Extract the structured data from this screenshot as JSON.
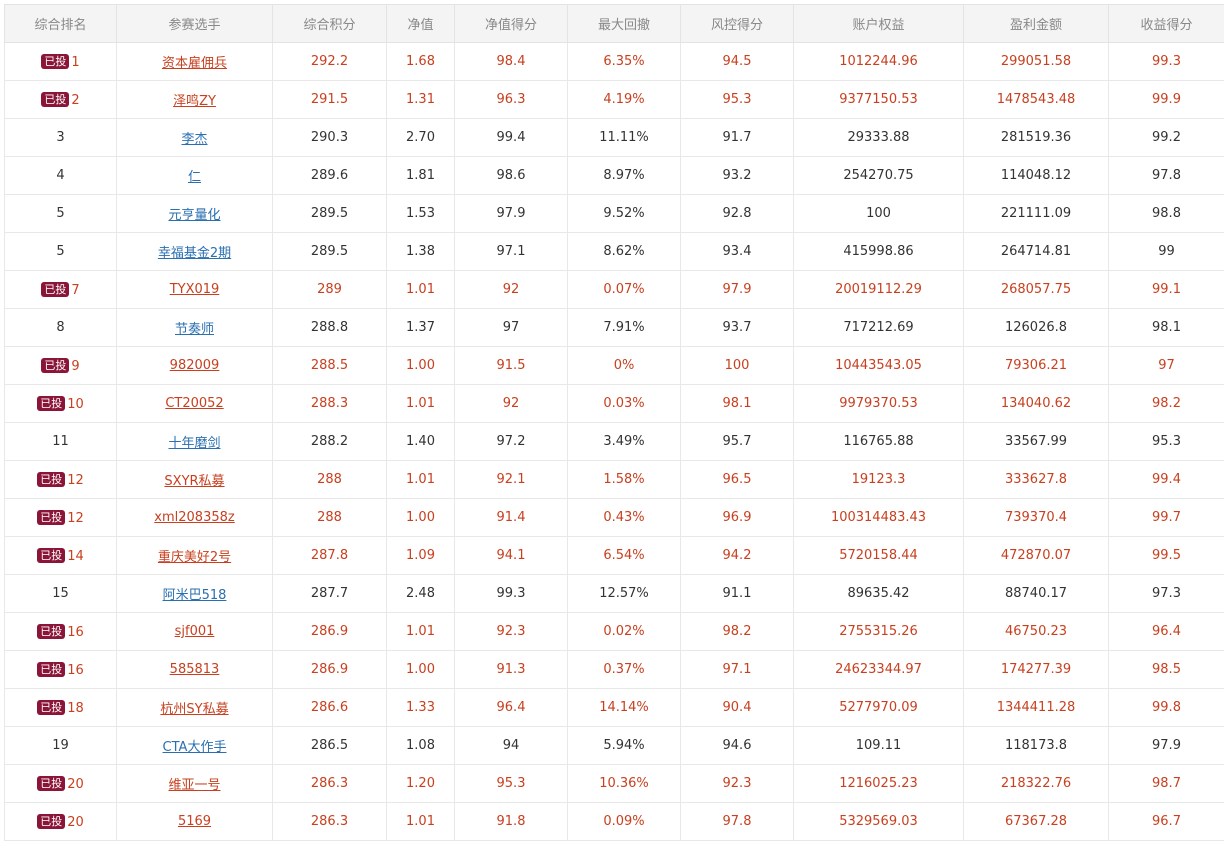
{
  "colors": {
    "invested_text": "#c8401f",
    "normal_text": "#333333",
    "link": "#2a6fb0",
    "badge_bg": "#8b1538",
    "header_bg": "#f4f4f4"
  },
  "badge_label": "已投",
  "columns": [
    "综合排名",
    "参赛选手",
    "综合积分",
    "净值",
    "净值得分",
    "最大回撤",
    "风控得分",
    "账户权益",
    "盈利金额",
    "收益得分"
  ],
  "rows": [
    {
      "rank": "1",
      "invested": true,
      "name": "资本雇佣兵",
      "score": "292.2",
      "nav": "1.68",
      "nav_score": "98.4",
      "drawdown": "6.35%",
      "risk_score": "94.5",
      "equity": "1012244.96",
      "profit": "299051.58",
      "return_score": "99.3"
    },
    {
      "rank": "2",
      "invested": true,
      "name": "泽鸣ZY",
      "score": "291.5",
      "nav": "1.31",
      "nav_score": "96.3",
      "drawdown": "4.19%",
      "risk_score": "95.3",
      "equity": "9377150.53",
      "profit": "1478543.48",
      "return_score": "99.9"
    },
    {
      "rank": "3",
      "invested": false,
      "name": "李杰",
      "score": "290.3",
      "nav": "2.70",
      "nav_score": "99.4",
      "drawdown": "11.11%",
      "risk_score": "91.7",
      "equity": "29333.88",
      "profit": "281519.36",
      "return_score": "99.2"
    },
    {
      "rank": "4",
      "invested": false,
      "name": "仁",
      "score": "289.6",
      "nav": "1.81",
      "nav_score": "98.6",
      "drawdown": "8.97%",
      "risk_score": "93.2",
      "equity": "254270.75",
      "profit": "114048.12",
      "return_score": "97.8"
    },
    {
      "rank": "5",
      "invested": false,
      "name": "元亨量化",
      "score": "289.5",
      "nav": "1.53",
      "nav_score": "97.9",
      "drawdown": "9.52%",
      "risk_score": "92.8",
      "equity": "100",
      "profit": "221111.09",
      "return_score": "98.8"
    },
    {
      "rank": "5",
      "invested": false,
      "name": "幸福基金2期",
      "score": "289.5",
      "nav": "1.38",
      "nav_score": "97.1",
      "drawdown": "8.62%",
      "risk_score": "93.4",
      "equity": "415998.86",
      "profit": "264714.81",
      "return_score": "99"
    },
    {
      "rank": "7",
      "invested": true,
      "name": "TYX019",
      "score": "289",
      "nav": "1.01",
      "nav_score": "92",
      "drawdown": "0.07%",
      "risk_score": "97.9",
      "equity": "20019112.29",
      "profit": "268057.75",
      "return_score": "99.1"
    },
    {
      "rank": "8",
      "invested": false,
      "name": "节奏师",
      "score": "288.8",
      "nav": "1.37",
      "nav_score": "97",
      "drawdown": "7.91%",
      "risk_score": "93.7",
      "equity": "717212.69",
      "profit": "126026.8",
      "return_score": "98.1"
    },
    {
      "rank": "9",
      "invested": true,
      "name": "982009",
      "score": "288.5",
      "nav": "1.00",
      "nav_score": "91.5",
      "drawdown": "0%",
      "risk_score": "100",
      "equity": "10443543.05",
      "profit": "79306.21",
      "return_score": "97"
    },
    {
      "rank": "10",
      "invested": true,
      "name": "CT20052",
      "score": "288.3",
      "nav": "1.01",
      "nav_score": "92",
      "drawdown": "0.03%",
      "risk_score": "98.1",
      "equity": "9979370.53",
      "profit": "134040.62",
      "return_score": "98.2"
    },
    {
      "rank": "11",
      "invested": false,
      "name": "十年磨剑",
      "score": "288.2",
      "nav": "1.40",
      "nav_score": "97.2",
      "drawdown": "3.49%",
      "risk_score": "95.7",
      "equity": "116765.88",
      "profit": "33567.99",
      "return_score": "95.3"
    },
    {
      "rank": "12",
      "invested": true,
      "name": "SXYR私募",
      "score": "288",
      "nav": "1.01",
      "nav_score": "92.1",
      "drawdown": "1.58%",
      "risk_score": "96.5",
      "equity": "19123.3",
      "profit": "333627.8",
      "return_score": "99.4"
    },
    {
      "rank": "12",
      "invested": true,
      "name": "xml208358z",
      "score": "288",
      "nav": "1.00",
      "nav_score": "91.4",
      "drawdown": "0.43%",
      "risk_score": "96.9",
      "equity": "100314483.43",
      "profit": "739370.4",
      "return_score": "99.7"
    },
    {
      "rank": "14",
      "invested": true,
      "name": "重庆美好2号",
      "score": "287.8",
      "nav": "1.09",
      "nav_score": "94.1",
      "drawdown": "6.54%",
      "risk_score": "94.2",
      "equity": "5720158.44",
      "profit": "472870.07",
      "return_score": "99.5"
    },
    {
      "rank": "15",
      "invested": false,
      "name": "阿米巴518",
      "score": "287.7",
      "nav": "2.48",
      "nav_score": "99.3",
      "drawdown": "12.57%",
      "risk_score": "91.1",
      "equity": "89635.42",
      "profit": "88740.17",
      "return_score": "97.3"
    },
    {
      "rank": "16",
      "invested": true,
      "name": "sjf001",
      "score": "286.9",
      "nav": "1.01",
      "nav_score": "92.3",
      "drawdown": "0.02%",
      "risk_score": "98.2",
      "equity": "2755315.26",
      "profit": "46750.23",
      "return_score": "96.4"
    },
    {
      "rank": "16",
      "invested": true,
      "name": "585813",
      "score": "286.9",
      "nav": "1.00",
      "nav_score": "91.3",
      "drawdown": "0.37%",
      "risk_score": "97.1",
      "equity": "24623344.97",
      "profit": "174277.39",
      "return_score": "98.5"
    },
    {
      "rank": "18",
      "invested": true,
      "name": "杭州SY私募",
      "score": "286.6",
      "nav": "1.33",
      "nav_score": "96.4",
      "drawdown": "14.14%",
      "risk_score": "90.4",
      "equity": "5277970.09",
      "profit": "1344411.28",
      "return_score": "99.8"
    },
    {
      "rank": "19",
      "invested": false,
      "name": "CTA大作手",
      "score": "286.5",
      "nav": "1.08",
      "nav_score": "94",
      "drawdown": "5.94%",
      "risk_score": "94.6",
      "equity": "109.11",
      "profit": "118173.8",
      "return_score": "97.9"
    },
    {
      "rank": "20",
      "invested": true,
      "name": "维亚一号",
      "score": "286.3",
      "nav": "1.20",
      "nav_score": "95.3",
      "drawdown": "10.36%",
      "risk_score": "92.3",
      "equity": "1216025.23",
      "profit": "218322.76",
      "return_score": "98.7"
    },
    {
      "rank": "20",
      "invested": true,
      "name": "5169",
      "score": "286.3",
      "nav": "1.01",
      "nav_score": "91.8",
      "drawdown": "0.09%",
      "risk_score": "97.8",
      "equity": "5329569.03",
      "profit": "67367.28",
      "return_score": "96.7"
    }
  ]
}
